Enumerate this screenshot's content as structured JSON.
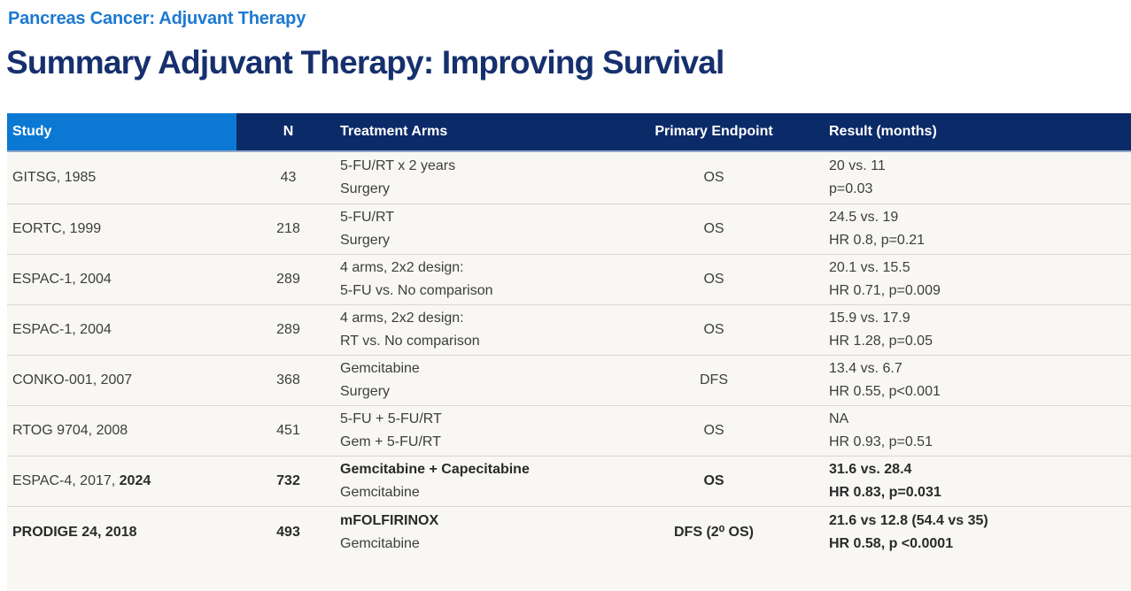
{
  "page": {
    "eyebrow": "Pancreas Cancer: Adjuvant Therapy",
    "title": "Summary Adjuvant Therapy: Improving Survival"
  },
  "colors": {
    "eyebrow_blue": "#1c79d2",
    "title_navy": "#16306e",
    "header_study_cell_blue": "#0b79d3",
    "header_navy": "#0b2a68",
    "row_background": "#f8f7f4",
    "row_border": "#dad7d2",
    "body_text": "#3d3d3d"
  },
  "table": {
    "headers": {
      "study": "Study",
      "n": "N",
      "arms": "Treatment Arms",
      "endpoint": "Primary Endpoint",
      "result": "Result (months)"
    },
    "rows": [
      {
        "study": "GITSG, 1985",
        "study_bold": "",
        "n": "43",
        "arm1": "5-FU/RT x 2 years",
        "arm2": "Surgery",
        "endpoint": "OS",
        "result1": "20 vs. 11",
        "result2": "p=0.03",
        "emphasis": false
      },
      {
        "study": "EORTC, 1999",
        "study_bold": "",
        "n": "218",
        "arm1": "5-FU/RT",
        "arm2": "Surgery",
        "endpoint": "OS",
        "result1": "24.5 vs. 19",
        "result2": "HR 0.8, p=0.21",
        "emphasis": false
      },
      {
        "study": "ESPAC-1, 2004",
        "study_bold": "",
        "n": "289",
        "arm1": "4 arms, 2x2 design:",
        "arm2": "5-FU vs. No comparison",
        "endpoint": "OS",
        "result1": "20.1 vs. 15.5",
        "result2": "HR 0.71, p=0.009",
        "emphasis": false
      },
      {
        "study": "ESPAC-1, 2004",
        "study_bold": "",
        "n": "289",
        "arm1": "4 arms, 2x2 design:",
        "arm2": "RT vs. No comparison",
        "endpoint": "OS",
        "result1": "15.9 vs. 17.9",
        "result2": "HR 1.28, p=0.05",
        "emphasis": false
      },
      {
        "study": "CONKO-001, 2007",
        "study_bold": "",
        "n": "368",
        "arm1": "Gemcitabine",
        "arm2": "Surgery",
        "endpoint": "DFS",
        "result1": "13.4 vs. 6.7",
        "result2": "HR 0.55, p<0.001",
        "emphasis": false
      },
      {
        "study": "RTOG 9704, 2008",
        "study_bold": "",
        "n": "451",
        "arm1": "5-FU + 5-FU/RT",
        "arm2": "Gem + 5-FU/RT",
        "endpoint": "OS",
        "result1": "NA",
        "result2": "HR 0.93, p=0.51",
        "emphasis": false
      },
      {
        "study": "ESPAC-4, 2017, ",
        "study_bold": "2024",
        "n": "732",
        "arm1": "Gemcitabine + Capecitabine",
        "arm2": "Gemcitabine",
        "endpoint": "OS",
        "result1": "31.6 vs. 28.4",
        "result2": "HR 0.83, p=0.031",
        "emphasis": true
      },
      {
        "study": "",
        "study_bold": "PRODIGE 24, 2018",
        "n": "493",
        "arm1": "mFOLFIRINOX",
        "arm2": "Gemcitabine",
        "endpoint": "DFS (2⁰ OS)",
        "result1": "21.6 vs 12.8 (54.4 vs 35)",
        "result2": "HR 0.58, p <0.0001",
        "emphasis": true
      }
    ]
  }
}
